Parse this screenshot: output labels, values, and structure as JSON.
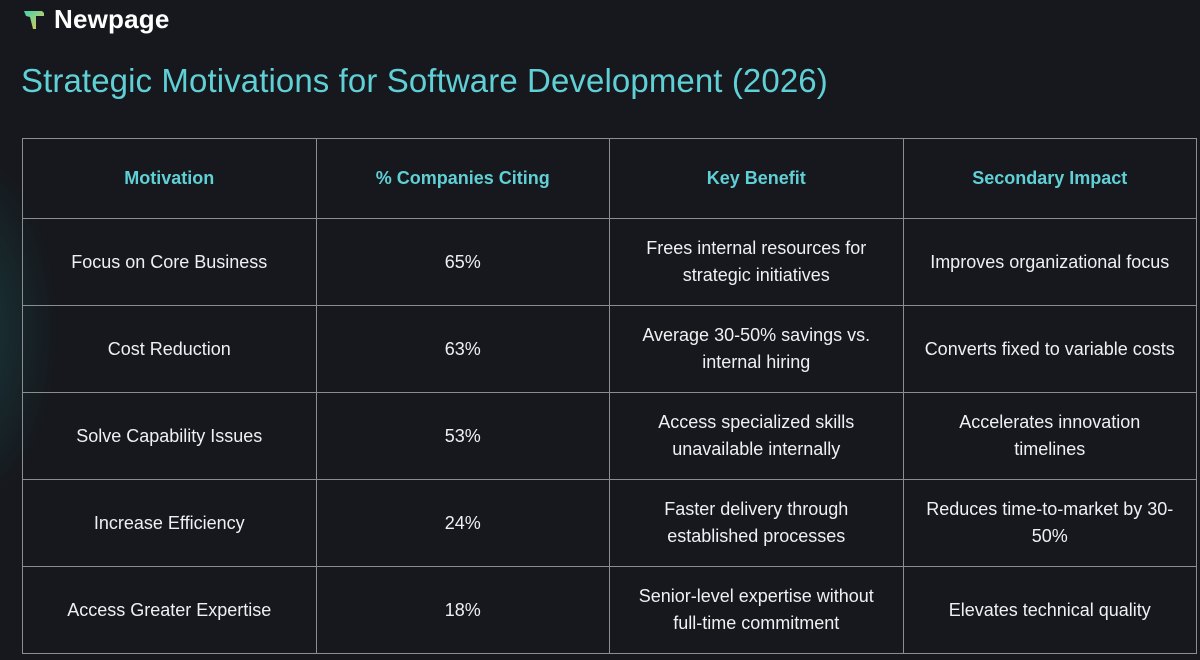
{
  "brand": {
    "name": "Newpage",
    "logo_icon": "newpage-logo-icon"
  },
  "title": "Strategic Motivations for Software Development (2026)",
  "table": {
    "headers": [
      "Motivation",
      "% Companies Citing",
      "Key Benefit",
      "Secondary Impact"
    ],
    "rows": [
      [
        "Focus on Core Business",
        "65%",
        "Frees internal resources for strategic initiatives",
        "Improves organizational focus"
      ],
      [
        "Cost Reduction",
        "63%",
        "Average 30-50% savings vs. internal hiring",
        "Converts fixed to variable costs"
      ],
      [
        "Solve Capability Issues",
        "53%",
        "Access specialized skills unavailable internally",
        "Accelerates innovation timelines"
      ],
      [
        "Increase Efficiency",
        "24%",
        "Faster delivery through established processes",
        "Reduces time-to-market by 30-50%"
      ],
      [
        "Access Greater Expertise",
        "18%",
        "Senior-level expertise without full-time commitment",
        "Elevates technical quality"
      ]
    ]
  },
  "colors": {
    "background": "#16181d",
    "accent": "#5fd0d6",
    "grid": "#8a8d93",
    "text": "#eef0f2"
  }
}
